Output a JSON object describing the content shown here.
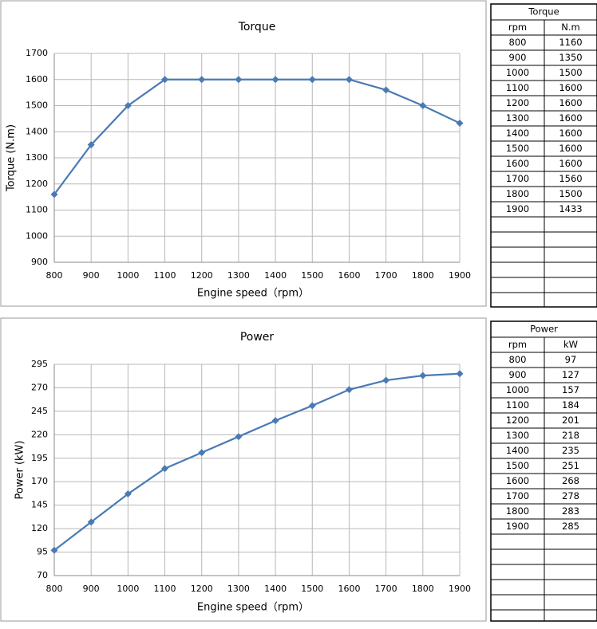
{
  "chart_data": [
    {
      "type": "line",
      "title": "Torque",
      "xlabel": "Engine speed（rpm）",
      "ylabel": "Torque (N.m)",
      "x": [
        800,
        900,
        1000,
        1100,
        1200,
        1300,
        1400,
        1500,
        1600,
        1700,
        1800,
        1900
      ],
      "values": [
        1160,
        1350,
        1500,
        1600,
        1600,
        1600,
        1600,
        1600,
        1600,
        1560,
        1500,
        1433
      ],
      "color": "#4a7ab5",
      "xlim": [
        800,
        1900
      ],
      "xticks": [
        800,
        900,
        1000,
        1100,
        1200,
        1300,
        1400,
        1500,
        1600,
        1700,
        1800,
        1900
      ],
      "ylim": [
        900,
        1700
      ],
      "yticks": [
        900,
        1000,
        1100,
        1200,
        1300,
        1400,
        1500,
        1600,
        1700
      ],
      "grid": true
    },
    {
      "type": "line",
      "title": "Power",
      "xlabel": "Engine speed（rpm）",
      "ylabel": "Power (kW)",
      "x": [
        800,
        900,
        1000,
        1100,
        1200,
        1300,
        1400,
        1500,
        1600,
        1700,
        1800,
        1900
      ],
      "values": [
        97,
        127,
        157,
        184,
        201,
        218,
        235,
        251,
        268,
        278,
        283,
        285
      ],
      "color": "#4a7ab5",
      "xlim": [
        800,
        1900
      ],
      "xticks": [
        800,
        900,
        1000,
        1100,
        1200,
        1300,
        1400,
        1500,
        1600,
        1700,
        1800,
        1900
      ],
      "ylim": [
        70,
        295
      ],
      "yticks": [
        70,
        95,
        120,
        145,
        170,
        195,
        220,
        245,
        270,
        295
      ],
      "grid": true
    }
  ],
  "tables": [
    {
      "title": "Torque",
      "columns": [
        "rpm",
        "N.m"
      ],
      "rows": [
        [
          800,
          1160
        ],
        [
          900,
          1350
        ],
        [
          1000,
          1500
        ],
        [
          1100,
          1600
        ],
        [
          1200,
          1600
        ],
        [
          1300,
          1600
        ],
        [
          1400,
          1600
        ],
        [
          1500,
          1600
        ],
        [
          1600,
          1600
        ],
        [
          1700,
          1560
        ],
        [
          1800,
          1500
        ],
        [
          1900,
          1433
        ]
      ]
    },
    {
      "title": "Power",
      "columns": [
        "rpm",
        "kW"
      ],
      "rows": [
        [
          800,
          97
        ],
        [
          900,
          127
        ],
        [
          1000,
          157
        ],
        [
          1100,
          184
        ],
        [
          1200,
          201
        ],
        [
          1300,
          218
        ],
        [
          1400,
          235
        ],
        [
          1500,
          251
        ],
        [
          1600,
          268
        ],
        [
          1700,
          278
        ],
        [
          1800,
          283
        ],
        [
          1900,
          285
        ]
      ]
    }
  ]
}
